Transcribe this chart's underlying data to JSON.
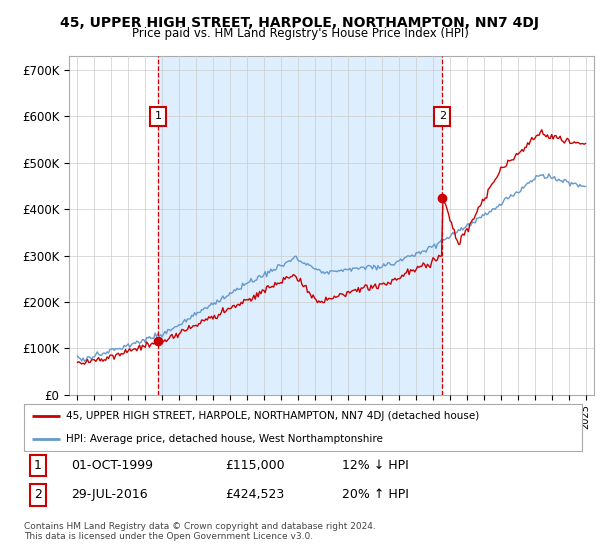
{
  "title": "45, UPPER HIGH STREET, HARPOLE, NORTHAMPTON, NN7 4DJ",
  "subtitle": "Price paid vs. HM Land Registry's House Price Index (HPI)",
  "ylabel_ticks": [
    "£0",
    "£100K",
    "£200K",
    "£300K",
    "£400K",
    "£500K",
    "£600K",
    "£700K"
  ],
  "ytick_values": [
    0,
    100000,
    200000,
    300000,
    400000,
    500000,
    600000,
    700000
  ],
  "ylim": [
    0,
    730000
  ],
  "purchase1": {
    "date_label": "01-OCT-1999",
    "price": 115000,
    "hpi_rel": "12% ↓ HPI",
    "year": 1999.75
  },
  "purchase2": {
    "date_label": "29-JUL-2016",
    "price": 424523,
    "hpi_rel": "20% ↑ HPI",
    "year": 2016.55
  },
  "legend_line1": "45, UPPER HIGH STREET, HARPOLE, NORTHAMPTON, NN7 4DJ (detached house)",
  "legend_line2": "HPI: Average price, detached house, West Northamptonshire",
  "footer1": "Contains HM Land Registry data © Crown copyright and database right 2024.",
  "footer2": "This data is licensed under the Open Government Licence v3.0.",
  "red_color": "#cc0000",
  "blue_color": "#6699cc",
  "shade_color": "#ddeeff",
  "background_color": "#ffffff",
  "grid_color": "#cccccc",
  "xlim_left": 1994.5,
  "xlim_right": 2025.5
}
